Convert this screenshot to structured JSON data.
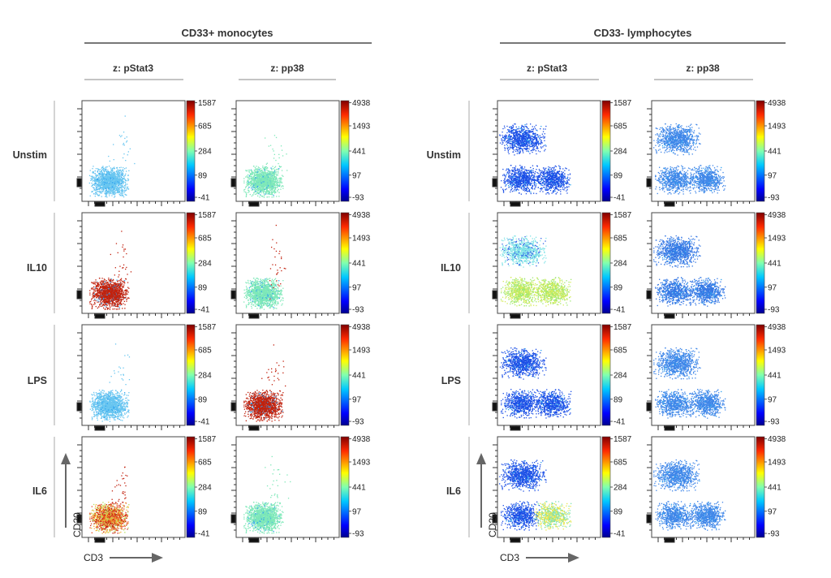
{
  "chart_data": {
    "type": "scatter",
    "subtype": "density scatter grid (cytometry)",
    "x_axis_label": "CD3",
    "y_axis_label": "CD20",
    "groups": [
      {
        "title": "CD33+ monocytes",
        "panels": [
          {
            "z_label": "z: pStat3",
            "colorbar_ticks": [
              "1587",
              "685",
              "284",
              "89",
              "-41"
            ]
          },
          {
            "z_label": "z: pp38",
            "colorbar_ticks": [
              "4938",
              "1493",
              "441",
              "97",
              "-93"
            ]
          }
        ]
      },
      {
        "title": "CD33- lymphocytes",
        "panels": [
          {
            "z_label": "z: pStat3",
            "colorbar_ticks": [
              "1587",
              "685",
              "284",
              "89",
              "-41"
            ]
          },
          {
            "z_label": "z: pp38",
            "colorbar_ticks": [
              "4938",
              "1493",
              "441",
              "97",
              "-93"
            ]
          }
        ]
      }
    ],
    "conditions": [
      "Unstim",
      "IL10",
      "LPS",
      "IL6"
    ],
    "plots": [
      {
        "group": 0,
        "panel": 0,
        "condition": "Unstim",
        "dominant_color": "#69c6f0"
      },
      {
        "group": 0,
        "panel": 1,
        "condition": "Unstim",
        "dominant_color": "#7ee8b8"
      },
      {
        "group": 1,
        "panel": 0,
        "condition": "Unstim",
        "dominant_color": "#1c4fe6"
      },
      {
        "group": 1,
        "panel": 1,
        "condition": "Unstim",
        "dominant_color": "#3f86e8"
      },
      {
        "group": 0,
        "panel": 0,
        "condition": "IL10",
        "dominant_color": "#c0220e"
      },
      {
        "group": 0,
        "panel": 1,
        "condition": "IL10",
        "dominant_color": "#7ee8b8"
      },
      {
        "group": 1,
        "panel": 0,
        "condition": "IL10",
        "dominant_color": "#b8ea6a"
      },
      {
        "group": 1,
        "panel": 1,
        "condition": "IL10",
        "dominant_color": "#3577e4"
      },
      {
        "group": 0,
        "panel": 0,
        "condition": "LPS",
        "dominant_color": "#69c6f0"
      },
      {
        "group": 0,
        "panel": 1,
        "condition": "LPS",
        "dominant_color": "#c0220e"
      },
      {
        "group": 1,
        "panel": 0,
        "condition": "LPS",
        "dominant_color": "#1c4fe6"
      },
      {
        "group": 1,
        "panel": 1,
        "condition": "LPS",
        "dominant_color": "#3f86e8"
      },
      {
        "group": 0,
        "panel": 0,
        "condition": "IL6",
        "dominant_color": "#ec6a1a"
      },
      {
        "group": 0,
        "panel": 1,
        "condition": "IL6",
        "dominant_color": "#7ee8b8"
      },
      {
        "group": 1,
        "panel": 0,
        "condition": "IL6",
        "dominant_color": "#1c4fe6"
      },
      {
        "group": 1,
        "panel": 1,
        "condition": "IL6",
        "dominant_color": "#3f86e8"
      }
    ],
    "colormap": [
      "#00007f",
      "#0000ff",
      "#0080ff",
      "#00ffff",
      "#80ff80",
      "#ffff00",
      "#ff8000",
      "#ff0000",
      "#7f0000"
    ]
  }
}
